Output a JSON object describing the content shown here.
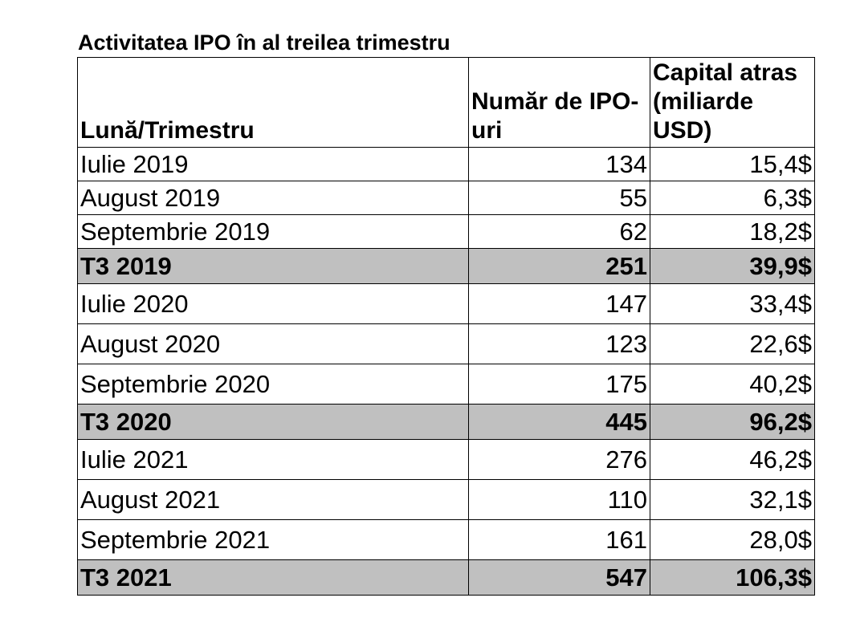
{
  "title": "Activitatea IPO în al treilea trimestru",
  "table": {
    "headers": [
      "Lună/Trimestru",
      "Număr de IPO-uri",
      "Capital atras (miliarde USD)"
    ],
    "rows": [
      {
        "period": "Iulie 2019",
        "count": "134",
        "capital": "15,4$",
        "total": false
      },
      {
        "period": "August 2019",
        "count": "55",
        "capital": "6,3$",
        "total": false
      },
      {
        "period": "Septembrie 2019",
        "count": "62",
        "capital": "18,2$",
        "total": false
      },
      {
        "period": "T3 2019",
        "count": "251",
        "capital": "39,9$",
        "total": true
      },
      {
        "period": "Iulie 2020",
        "count": "147",
        "capital": "33,4$",
        "total": false
      },
      {
        "period": "August 2020",
        "count": "123",
        "capital": "22,6$",
        "total": false
      },
      {
        "period": "Septembrie 2020",
        "count": "175",
        "capital": "40,2$",
        "total": false
      },
      {
        "period": "T3 2020",
        "count": "445",
        "capital": "96,2$",
        "total": true
      },
      {
        "period": "Iulie 2021",
        "count": "276",
        "capital": "46,2$",
        "total": false
      },
      {
        "period": "August 2021",
        "count": "110",
        "capital": "32,1$",
        "total": false
      },
      {
        "period": "Septembrie 2021",
        "count": "161",
        "capital": "28,0$",
        "total": false
      },
      {
        "period": "T3 2021",
        "count": "547",
        "capital": "106,3$",
        "total": true
      }
    ]
  },
  "colors": {
    "total_row_background": "#c0c0c0",
    "border": "#000000"
  }
}
